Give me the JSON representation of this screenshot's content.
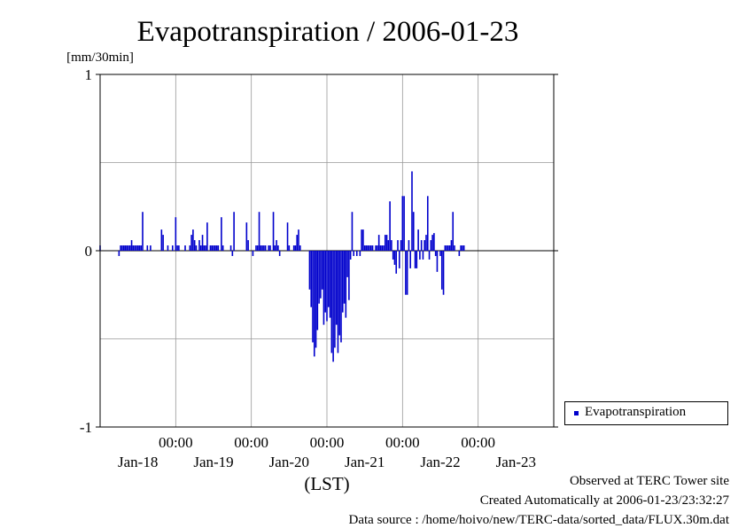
{
  "title": "Evapotranspiration / 2006-01-23",
  "y_unit_label": "[mm/30min]",
  "x_axis_label": "(LST)",
  "legend": {
    "label": "Evapotranspiration",
    "color": "#0000cc"
  },
  "footer": {
    "observed": "Observed at TERC Tower site",
    "created": "Created Automatically at 2006-01-23/23:32:27",
    "source": "Data source : /home/hoivo/new/TERC-data/sorted_data/FLUX.30m.dat"
  },
  "chart_data": {
    "type": "bar",
    "title": "Evapotranspiration / 2006-01-23",
    "ylabel": "[mm/30min]",
    "xlabel": "(LST)",
    "ylim": [
      -1,
      1
    ],
    "yticks": [
      {
        "value": 1,
        "label": "1"
      },
      {
        "value": 0,
        "label": "0"
      },
      {
        "value": -1,
        "label": "-1"
      }
    ],
    "x_range_hours": [
      -14,
      130
    ],
    "time_ticks": [
      {
        "hour": 10,
        "label": "00:00"
      },
      {
        "hour": 34,
        "label": "00:00"
      },
      {
        "hour": 58,
        "label": "00:00"
      },
      {
        "hour": 82,
        "label": "00:00"
      },
      {
        "hour": 106,
        "label": "00:00"
      }
    ],
    "date_ticks": [
      {
        "hour": -2,
        "label": "Jan-18"
      },
      {
        "hour": 22,
        "label": "Jan-19"
      },
      {
        "hour": 46,
        "label": "Jan-20"
      },
      {
        "hour": 70,
        "label": "Jan-21"
      },
      {
        "hour": 94,
        "label": "Jan-22"
      },
      {
        "hour": 118,
        "label": "Jan-23"
      }
    ],
    "grid": true,
    "series": [
      {
        "name": "Evapotranspiration",
        "color": "#0000cc",
        "points": [
          [
            -14,
            0.03
          ],
          [
            -8,
            -0.03
          ],
          [
            -7.5,
            0.03
          ],
          [
            -7,
            0.03
          ],
          [
            -6.5,
            0.03
          ],
          [
            -6,
            0.03
          ],
          [
            -5.5,
            0.03
          ],
          [
            -5,
            0.03
          ],
          [
            -4.5,
            0.03
          ],
          [
            -4,
            0.06
          ],
          [
            -3.5,
            0.03
          ],
          [
            -3,
            0.03
          ],
          [
            -2.5,
            0.03
          ],
          [
            -2,
            0.03
          ],
          [
            -1.5,
            0.03
          ],
          [
            -1,
            0.03
          ],
          [
            -0.5,
            0.22
          ],
          [
            1,
            0.03
          ],
          [
            2,
            0.03
          ],
          [
            5.5,
            0.12
          ],
          [
            6,
            0.09
          ],
          [
            7.5,
            0.03
          ],
          [
            9,
            0.03
          ],
          [
            10,
            0.19
          ],
          [
            10.5,
            0.03
          ],
          [
            11,
            0.03
          ],
          [
            13,
            0.03
          ],
          [
            14.5,
            0.03
          ],
          [
            15,
            0.09
          ],
          [
            15.5,
            0.12
          ],
          [
            16,
            0.06
          ],
          [
            16.5,
            0.03
          ],
          [
            17.5,
            0.06
          ],
          [
            18,
            0.03
          ],
          [
            18.5,
            0.09
          ],
          [
            19,
            0.03
          ],
          [
            19.5,
            0.03
          ],
          [
            20,
            0.16
          ],
          [
            21,
            0.03
          ],
          [
            21.5,
            0.03
          ],
          [
            22,
            0.03
          ],
          [
            22.5,
            0.03
          ],
          [
            23,
            0.03
          ],
          [
            23.5,
            0.03
          ],
          [
            24.5,
            0.19
          ],
          [
            25,
            0.03
          ],
          [
            27.5,
            0.03
          ],
          [
            28,
            -0.03
          ],
          [
            28.5,
            0.22
          ],
          [
            32.5,
            0.16
          ],
          [
            33,
            0.06
          ],
          [
            34.5,
            -0.03
          ],
          [
            35.5,
            0.03
          ],
          [
            36,
            0.03
          ],
          [
            36.5,
            0.22
          ],
          [
            37,
            0.03
          ],
          [
            37.5,
            0.03
          ],
          [
            38,
            0.03
          ],
          [
            38.5,
            0.03
          ],
          [
            39.5,
            0.03
          ],
          [
            40,
            0.03
          ],
          [
            41,
            0.22
          ],
          [
            41.5,
            0.03
          ],
          [
            42,
            0.06
          ],
          [
            42.5,
            0.03
          ],
          [
            43,
            -0.03
          ],
          [
            45.5,
            0.16
          ],
          [
            46,
            0.03
          ],
          [
            47.5,
            0.03
          ],
          [
            48,
            0.03
          ],
          [
            48.5,
            0.09
          ],
          [
            49,
            0.12
          ],
          [
            49.5,
            0.03
          ],
          [
            52.5,
            -0.22
          ],
          [
            53,
            -0.32
          ],
          [
            53.5,
            -0.52
          ],
          [
            54,
            -0.6
          ],
          [
            54.5,
            -0.55
          ],
          [
            55,
            -0.45
          ],
          [
            55.5,
            -0.3
          ],
          [
            56,
            -0.27
          ],
          [
            56.5,
            -0.22
          ],
          [
            57,
            -0.42
          ],
          [
            57.5,
            -0.35
          ],
          [
            58,
            -0.4
          ],
          [
            58.5,
            -0.32
          ],
          [
            59,
            -0.38
          ],
          [
            59.5,
            -0.58
          ],
          [
            60,
            -0.63
          ],
          [
            60.5,
            -0.55
          ],
          [
            61,
            -0.42
          ],
          [
            61.5,
            -0.58
          ],
          [
            62,
            -0.48
          ],
          [
            62.5,
            -0.52
          ],
          [
            63,
            -0.35
          ],
          [
            63.5,
            -0.3
          ],
          [
            64,
            -0.38
          ],
          [
            64.5,
            -0.15
          ],
          [
            65,
            -0.28
          ],
          [
            65.5,
            -0.05
          ],
          [
            66,
            0.22
          ],
          [
            66.5,
            -0.03
          ],
          [
            67.5,
            -0.03
          ],
          [
            68.5,
            -0.03
          ],
          [
            69,
            0.12
          ],
          [
            69.5,
            0.12
          ],
          [
            70,
            0.03
          ],
          [
            70.5,
            0.03
          ],
          [
            71,
            0.03
          ],
          [
            71.5,
            0.03
          ],
          [
            72,
            0.03
          ],
          [
            72.5,
            0.03
          ],
          [
            73.5,
            0.03
          ],
          [
            74,
            0.03
          ],
          [
            74.5,
            0.09
          ],
          [
            75,
            0.03
          ],
          [
            75.5,
            0.03
          ],
          [
            76,
            0.03
          ],
          [
            76.5,
            0.09
          ],
          [
            77,
            0.09
          ],
          [
            77.5,
            0.06
          ],
          [
            78,
            0.28
          ],
          [
            78.5,
            0.06
          ],
          [
            79,
            -0.05
          ],
          [
            79.5,
            -0.08
          ],
          [
            80,
            -0.13
          ],
          [
            80.5,
            0.06
          ],
          [
            81,
            -0.1
          ],
          [
            81.5,
            0.06
          ],
          [
            82,
            0.31
          ],
          [
            82.5,
            0.31
          ],
          [
            83,
            -0.25
          ],
          [
            83.5,
            -0.25
          ],
          [
            84,
            0.06
          ],
          [
            84.5,
            -0.1
          ],
          [
            85,
            0.45
          ],
          [
            85.5,
            0.22
          ],
          [
            86,
            -0.1
          ],
          [
            86.5,
            -0.1
          ],
          [
            87,
            0.12
          ],
          [
            87.5,
            -0.05
          ],
          [
            88,
            0.06
          ],
          [
            88.5,
            -0.05
          ],
          [
            89,
            0.06
          ],
          [
            89.5,
            0.09
          ],
          [
            90,
            0.31
          ],
          [
            90.5,
            -0.05
          ],
          [
            91,
            0.06
          ],
          [
            91.5,
            0.09
          ],
          [
            92,
            0.1
          ],
          [
            92.5,
            -0.03
          ],
          [
            93,
            -0.12
          ],
          [
            94,
            -0.03
          ],
          [
            94.5,
            -0.22
          ],
          [
            95,
            -0.25
          ],
          [
            95.5,
            0.03
          ],
          [
            96,
            0.03
          ],
          [
            96.5,
            0.03
          ],
          [
            97,
            0.03
          ],
          [
            97.5,
            0.06
          ],
          [
            98,
            0.22
          ],
          [
            98.5,
            0.03
          ],
          [
            100,
            -0.03
          ],
          [
            100.5,
            0.03
          ],
          [
            101,
            0.03
          ],
          [
            101.5,
            0.03
          ]
        ]
      }
    ]
  }
}
